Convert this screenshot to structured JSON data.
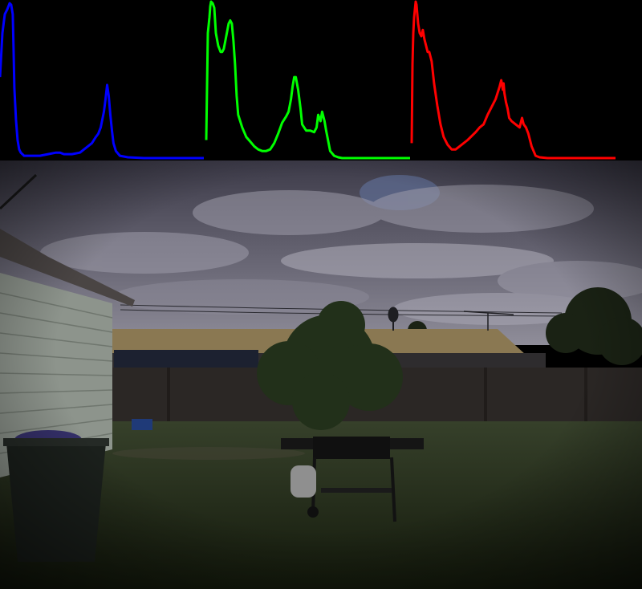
{
  "chart_data": {
    "type": "line",
    "title": "",
    "xlabel": "",
    "ylabel": "",
    "grid": false,
    "legend": "none",
    "xlim": [
      0,
      255
    ],
    "ylim": [
      0,
      100
    ],
    "panels": [
      {
        "channel": "blue",
        "color": "#0000ff",
        "x": [
          0,
          3,
          6,
          9,
          12,
          14,
          16,
          17,
          18,
          20,
          22,
          24,
          26,
          28,
          30,
          40,
          50,
          60,
          70,
          75,
          80,
          90,
          100,
          110,
          115,
          120,
          123,
          126,
          128,
          130,
          132,
          134,
          136,
          138,
          140,
          142,
          145,
          150,
          160,
          180,
          200,
          220,
          240,
          255
        ],
        "y": [
          52,
          80,
          92,
          95,
          99,
          98,
          92,
          70,
          45,
          25,
          12,
          6,
          4,
          3,
          2,
          2,
          2,
          3,
          4,
          4,
          3,
          3,
          4,
          8,
          10,
          14,
          16,
          20,
          25,
          30,
          38,
          47,
          40,
          28,
          18,
          10,
          5,
          2,
          1,
          0.5,
          0.5,
          0.5,
          0.5,
          0.5
        ]
      },
      {
        "channel": "green",
        "color": "#00ff00",
        "x": [
          0,
          2,
          4,
          5,
          6,
          8,
          10,
          12,
          15,
          18,
          20,
          22,
          25,
          28,
          30,
          32,
          34,
          36,
          38,
          40,
          45,
          50,
          55,
          60,
          65,
          70,
          75,
          80,
          85,
          90,
          95,
          100,
          103,
          106,
          108,
          110,
          112,
          115,
          118,
          120,
          125,
          130,
          135,
          138,
          140,
          143,
          145,
          148,
          150,
          155,
          160,
          165,
          170,
          180,
          200,
          220,
          240,
          255
        ],
        "y": [
          12,
          80,
          90,
          97,
          100,
          99,
          96,
          80,
          72,
          68,
          68,
          70,
          78,
          86,
          88,
          86,
          75,
          60,
          40,
          28,
          20,
          14,
          11,
          8,
          6,
          5,
          5,
          6,
          10,
          16,
          23,
          27,
          30,
          38,
          46,
          52,
          52,
          44,
          32,
          22,
          18,
          18,
          17,
          20,
          28,
          24,
          30,
          24,
          18,
          5,
          2,
          1,
          0.5,
          0.5,
          0.5,
          0.5,
          0.5,
          0.5
        ]
      },
      {
        "channel": "red",
        "color": "#ff0000",
        "x": [
          0,
          1,
          2,
          3,
          4,
          5,
          6,
          8,
          10,
          12,
          14,
          16,
          18,
          20,
          22,
          25,
          28,
          32,
          36,
          40,
          45,
          50,
          55,
          60,
          70,
          80,
          85,
          90,
          95,
          100,
          105,
          110,
          112,
          114,
          115,
          116,
          118,
          120,
          122,
          125,
          130,
          135,
          138,
          140,
          143,
          146,
          150,
          155,
          160,
          170,
          190,
          220,
          255
        ],
        "y": [
          10,
          60,
          80,
          90,
          95,
          100,
          98,
          86,
          80,
          78,
          82,
          76,
          72,
          68,
          68,
          62,
          48,
          34,
          22,
          14,
          9,
          6,
          6,
          8,
          12,
          17,
          20,
          22,
          28,
          33,
          38,
          46,
          50,
          44,
          48,
          42,
          36,
          32,
          26,
          24,
          22,
          20,
          26,
          22,
          20,
          16,
          8,
          2,
          1,
          0.5,
          0.5,
          0.5,
          0.5
        ]
      }
    ]
  },
  "photo": {
    "colors": {
      "sky_top": "#4a4857",
      "sky_bottom": "#8a8895",
      "cloud": "#9f9dab",
      "blue_patch": "#5d6a8e",
      "roof": "#8c7a55",
      "fence": "#2b2826",
      "grass": "#283018",
      "tree": "#1f2a16",
      "house_wall": "#8e958d",
      "bin": "#1c211d",
      "bbq": "#141414"
    },
    "icons": [
      "satellite-dish-icon",
      "tv-antenna-icon"
    ]
  }
}
